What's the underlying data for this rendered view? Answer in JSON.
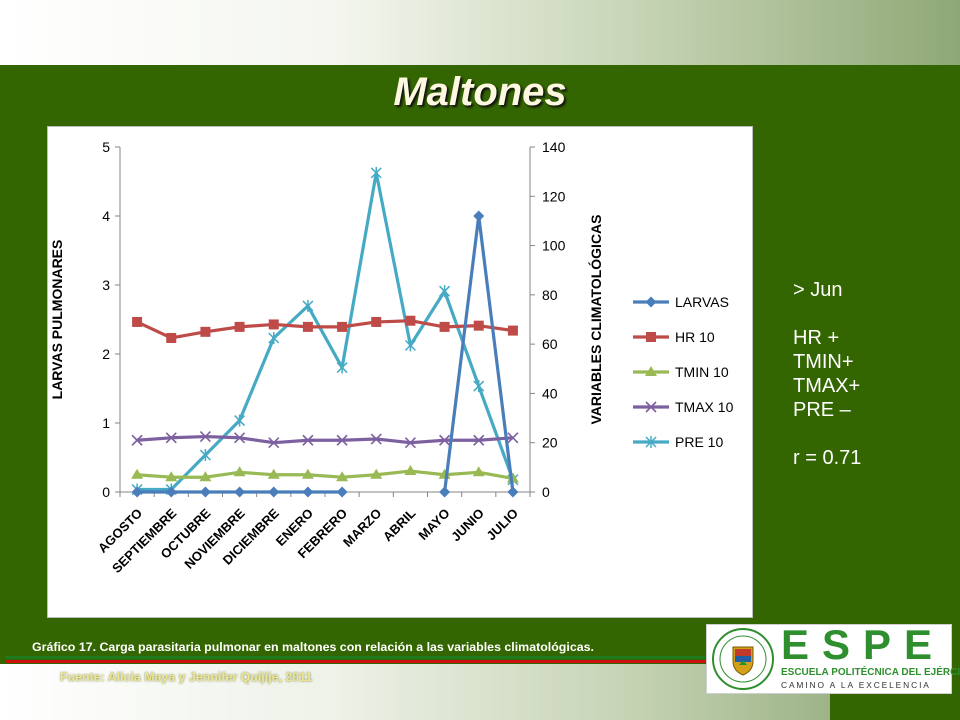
{
  "title": "Maltones",
  "notes": [
    "> Jun",
    "",
    "HR +",
    "TMIN+",
    "TMAX+",
    "PRE –",
    "",
    "r = 0.71"
  ],
  "caption": "Gráfico 17. Carga parasitaria pulmonar en maltones con relación a las variables climatológicas.",
  "source": "Fuente: Alicia Maya y Jennifer Quijije, 2011",
  "logo": {
    "letters": "ESPE",
    "line1": "ESCUELA POLITÉCNICA DEL EJÉRCITO",
    "line2": "CAMINO A LA EXCELENCIA",
    "emblem": "espe-shield-emblem"
  },
  "colors": {
    "background": "#336600",
    "larvas": "#4a7ebb",
    "hr": "#be4b48",
    "tmin": "#98b954",
    "tmax": "#7d60a0",
    "pre": "#46aac5"
  },
  "chart_data": {
    "type": "line",
    "categories": [
      "AGOSTO",
      "SEPTIEMBRE",
      "OCTUBRE",
      "NOVIEMBRE",
      "DICIEMBRE",
      "ENERO",
      "FEBRERO",
      "MARZO",
      "ABRIL",
      "MAYO",
      "JUNIO",
      "JULIO"
    ],
    "y_left": {
      "label": "LARVAS PULMONARES",
      "min": 0,
      "max": 5,
      "ticks": [
        "0",
        "1",
        "2",
        "3",
        "4",
        "5"
      ]
    },
    "y_right": {
      "label": "VARIABLES CLIMATOLÓGICAS",
      "min": 0,
      "max": 140,
      "ticks": [
        "0",
        "20",
        "40",
        "60",
        "80",
        "100",
        "120",
        "140"
      ]
    },
    "series": [
      {
        "name": "LARVAS",
        "axis": "left",
        "marker": "diamond",
        "color": "#4a7ebb",
        "values": [
          0,
          0,
          0,
          0,
          0,
          0,
          0,
          null,
          null,
          0,
          4,
          0
        ]
      },
      {
        "name": "HR 10",
        "axis": "right",
        "marker": "square",
        "color": "#be4b48",
        "values": [
          69,
          62.5,
          65,
          67,
          68,
          67,
          67,
          69,
          69.5,
          67,
          67.5,
          65.5
        ]
      },
      {
        "name": "TMIN 10",
        "axis": "right",
        "marker": "triangle",
        "color": "#98b954",
        "values": [
          7,
          6,
          6,
          8,
          7,
          7,
          6,
          7,
          8.5,
          7,
          8,
          5.5
        ]
      },
      {
        "name": "TMAX 10",
        "axis": "right",
        "marker": "x",
        "color": "#7d60a0",
        "values": [
          21,
          22,
          22.5,
          22,
          20,
          21,
          21,
          21.5,
          20,
          21,
          21,
          22
        ]
      },
      {
        "name": "PRE 10",
        "axis": "right",
        "marker": "star",
        "color": "#46aac5",
        "values": [
          1,
          1,
          15,
          29,
          62.5,
          75.5,
          50.5,
          129.5,
          59.5,
          81.5,
          43,
          5
        ]
      }
    ],
    "legend": "right",
    "grid": false
  }
}
